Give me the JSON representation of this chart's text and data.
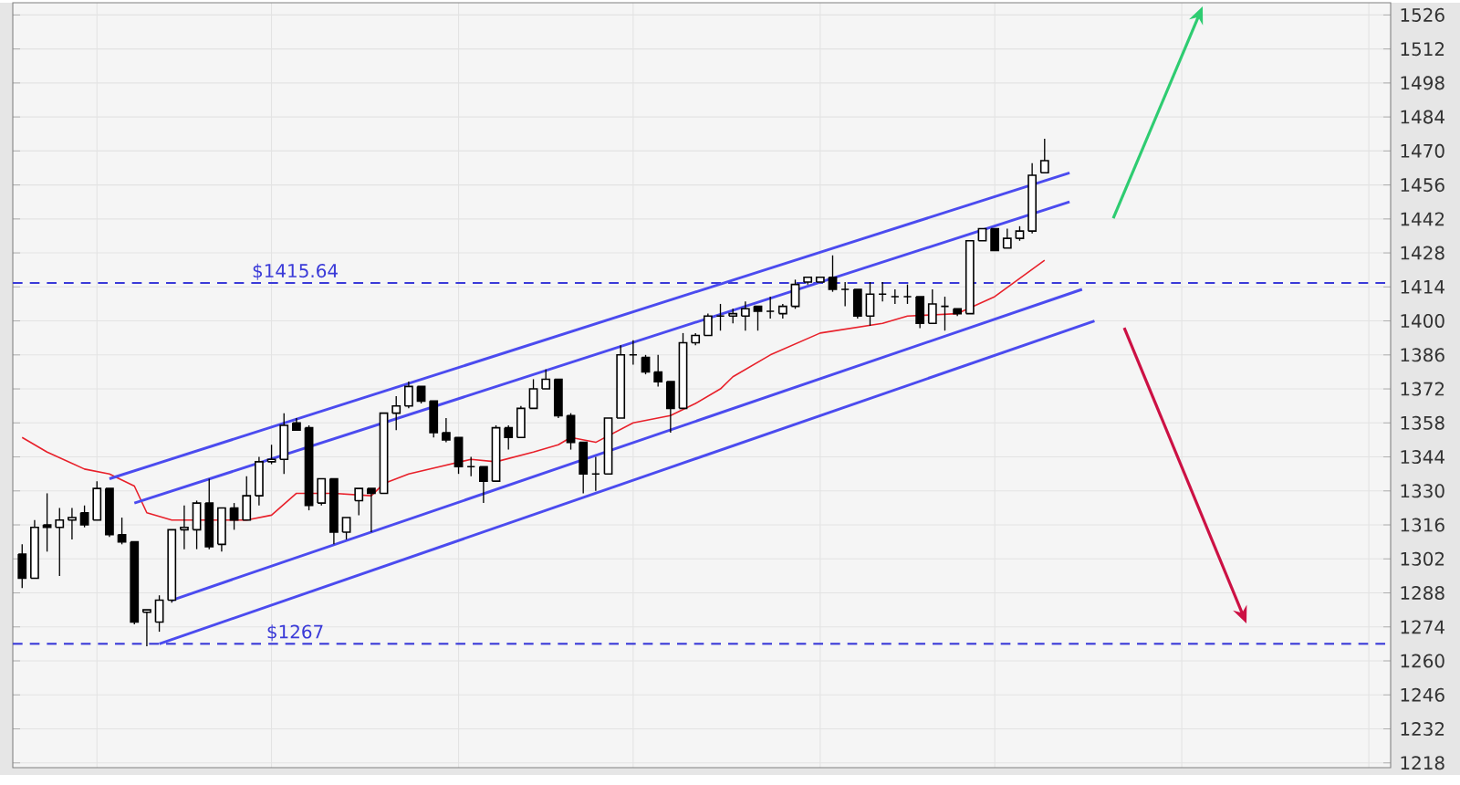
{
  "chart_data": {
    "type": "candlestick",
    "categories": [
      null,
      null,
      null,
      null,
      null,
      null,
      null,
      null,
      null,
      null,
      null,
      null,
      null,
      null,
      null,
      null,
      null,
      null,
      null,
      null,
      null,
      null,
      null,
      null,
      null,
      null,
      null,
      null,
      null,
      null,
      null,
      null,
      null,
      null,
      null,
      null,
      null,
      null,
      null,
      null,
      null,
      null,
      null,
      null,
      null,
      null,
      null,
      null,
      null,
      null,
      null,
      null,
      null,
      null,
      null,
      null,
      null,
      null,
      null,
      null,
      null,
      null,
      null,
      null,
      null,
      null,
      null,
      null,
      null,
      null,
      null,
      null,
      null,
      null,
      null,
      null,
      null,
      null,
      null,
      null,
      null,
      null,
      null,
      null,
      null,
      null,
      null,
      null,
      null,
      null,
      null,
      null,
      null,
      null,
      null,
      null,
      null,
      null,
      null,
      null,
      null,
      null,
      null,
      null,
      null,
      null,
      null,
      null,
      null,
      null
    ],
    "ohlc": [
      [
        1304,
        1308,
        1290,
        1294
      ],
      [
        1294,
        1318,
        1294,
        1315
      ],
      [
        1316,
        1329,
        1305,
        1315
      ],
      [
        1315,
        1323,
        1295,
        1318
      ],
      [
        1318,
        1323,
        1310,
        1319
      ],
      [
        1321,
        1324,
        1315,
        1316
      ],
      [
        1318,
        1334,
        1318,
        1331
      ],
      [
        1331,
        1331,
        1311,
        1312
      ],
      [
        1312,
        1319,
        1308,
        1309
      ],
      [
        1309,
        1309,
        1275,
        1276
      ],
      [
        1280,
        1281,
        1266,
        1281
      ],
      [
        1276,
        1287,
        1272,
        1285
      ],
      [
        1285,
        1314,
        1284,
        1314
      ],
      [
        1314,
        1324,
        1306,
        1315
      ],
      [
        1314,
        1326,
        1306,
        1325
      ],
      [
        1325,
        1335,
        1306,
        1307
      ],
      [
        1308,
        1323,
        1305,
        1323
      ],
      [
        1323,
        1325,
        1314,
        1318
      ],
      [
        1318,
        1336,
        1318,
        1328
      ],
      [
        1328,
        1344,
        1324,
        1342
      ],
      [
        1342,
        1349,
        1341,
        1343
      ],
      [
        1343,
        1362,
        1337,
        1357
      ],
      [
        1358,
        1360,
        1355,
        1355
      ],
      [
        1356,
        1357,
        1322,
        1324
      ],
      [
        1325,
        1335,
        1324,
        1335
      ],
      [
        1335,
        1335,
        1308,
        1313
      ],
      [
        1313,
        1319,
        1310,
        1319
      ],
      [
        1326,
        1331,
        1320,
        1331
      ],
      [
        1331,
        1331,
        1313,
        1329
      ],
      [
        1329,
        1362,
        1329,
        1362
      ],
      [
        1362,
        1369,
        1355,
        1365
      ],
      [
        1365,
        1375,
        1364,
        1373
      ],
      [
        1373,
        1373,
        1366,
        1367
      ],
      [
        1367,
        1367,
        1352,
        1354
      ],
      [
        1354,
        1360,
        1350,
        1351
      ],
      [
        1352,
        1352,
        1337,
        1340
      ],
      [
        1340,
        1344,
        1336,
        1340
      ],
      [
        1340,
        1340,
        1325,
        1334
      ],
      [
        1334,
        1357,
        1334,
        1356
      ],
      [
        1356,
        1357,
        1347,
        1352
      ],
      [
        1352,
        1365,
        1352,
        1364
      ],
      [
        1364,
        1376,
        1364,
        1372
      ],
      [
        1372,
        1380,
        1372,
        1376
      ],
      [
        1376,
        1376,
        1360,
        1361
      ],
      [
        1361,
        1362,
        1347,
        1350
      ],
      [
        1350,
        1350,
        1329,
        1337
      ],
      [
        1337,
        1344,
        1330,
        1337
      ],
      [
        1337,
        1360,
        1337,
        1360
      ],
      [
        1360,
        1390,
        1360,
        1386
      ],
      [
        1386,
        1392,
        1382,
        1386
      ],
      [
        1385,
        1386,
        1378,
        1379
      ],
      [
        1379,
        1386,
        1373,
        1375
      ],
      [
        1375,
        1375,
        1354,
        1364
      ],
      [
        1364,
        1395,
        1364,
        1391
      ],
      [
        1391,
        1395,
        1390,
        1394
      ],
      [
        1394,
        1403,
        1394,
        1402
      ],
      [
        1402,
        1407,
        1396,
        1402
      ],
      [
        1402,
        1405,
        1399,
        1403
      ],
      [
        1402,
        1408,
        1396,
        1405
      ],
      [
        1406,
        1406,
        1396,
        1404
      ],
      [
        1404,
        1410,
        1401,
        1404
      ],
      [
        1403,
        1407,
        1401,
        1406
      ],
      [
        1406,
        1417,
        1405,
        1415
      ],
      [
        1416,
        1418,
        1415,
        1418
      ],
      [
        1416,
        1418,
        1416,
        1418
      ],
      [
        1418,
        1427,
        1412,
        1413
      ],
      [
        1413,
        1416,
        1406,
        1413
      ],
      [
        1413,
        1413,
        1401,
        1402
      ],
      [
        1402,
        1416,
        1398,
        1411
      ],
      [
        1411,
        1416,
        1408,
        1411
      ],
      [
        1410,
        1413,
        1407,
        1410
      ],
      [
        1410,
        1415,
        1407,
        1410
      ],
      [
        1410,
        1410,
        1397,
        1399
      ],
      [
        1399,
        1413,
        1399,
        1407
      ],
      [
        1406,
        1410,
        1396,
        1406
      ],
      [
        1405,
        1405,
        1402,
        1403
      ],
      [
        1403,
        1433,
        1403,
        1433
      ],
      [
        1433,
        1438,
        1433,
        1438
      ],
      [
        1438,
        1438,
        1429,
        1429
      ],
      [
        1430,
        1438,
        1430,
        1434
      ],
      [
        1434,
        1439,
        1433,
        1437
      ],
      [
        1437,
        1465,
        1436,
        1460
      ],
      [
        1461,
        1475,
        1461,
        1466
      ],
      null,
      null,
      null,
      null,
      null,
      null,
      null,
      null,
      null,
      null,
      null,
      null,
      null,
      null,
      null,
      null,
      null,
      null,
      null,
      null,
      null,
      null,
      null,
      null,
      null,
      null,
      null
    ],
    "series": [
      {
        "type": "line",
        "color": "#e8202a",
        "values": [
          1352,
          null,
          1346,
          null,
          null,
          1339,
          null,
          1337,
          null,
          1332,
          1321,
          null,
          1318,
          null,
          null,
          null,
          null,
          null,
          1318,
          null,
          1320,
          null,
          1329,
          null,
          null,
          1329,
          null,
          null,
          1328,
          1333,
          null,
          1337,
          null,
          null,
          null,
          null,
          1343,
          null,
          1342,
          null,
          null,
          1346,
          null,
          1349,
          1352,
          null,
          1350,
          null,
          null,
          1358,
          null,
          null,
          1361,
          null,
          1366,
          null,
          1372,
          1377,
          null,
          null,
          1386,
          null,
          null,
          null,
          1395,
          null,
          null,
          null,
          null,
          1399,
          null,
          1402,
          null,
          null,
          null,
          1403,
          null,
          null,
          1410,
          null,
          null,
          null,
          1425,
          null,
          null,
          null,
          null,
          null,
          null,
          null,
          null,
          null,
          null,
          null,
          null,
          null,
          null,
          null,
          null,
          null,
          null,
          null,
          null,
          null,
          null,
          null,
          null,
          null,
          null,
          null
        ]
      },
      {
        "type": "line",
        "color": "#4b4bef",
        "values": [
          null,
          null,
          null,
          null,
          null,
          null,
          null,
          1335,
          null,
          null,
          null,
          null,
          null,
          null,
          null,
          null,
          null,
          null,
          null,
          null,
          null,
          null,
          null,
          null,
          null,
          null,
          null,
          null,
          null,
          null,
          null,
          null,
          null,
          null,
          null,
          null,
          null,
          null,
          null,
          null,
          null,
          null,
          null,
          null,
          null,
          null,
          null,
          null,
          null,
          null,
          null,
          null,
          null,
          null,
          null,
          null,
          null,
          null,
          null,
          null,
          null,
          null,
          null,
          null,
          null,
          null,
          null,
          null,
          null,
          null,
          null,
          null,
          null,
          null,
          null,
          null,
          null,
          null,
          null,
          null,
          null,
          null,
          null,
          null,
          1461,
          null,
          null,
          null,
          null,
          null,
          null,
          null,
          null,
          null,
          null,
          null,
          null,
          null,
          null,
          null,
          null,
          null,
          null,
          null,
          null,
          null,
          null,
          null,
          null,
          null
        ]
      },
      {
        "type": "line",
        "color": "#4b4bef",
        "values": [
          null,
          null,
          null,
          null,
          null,
          null,
          null,
          null,
          null,
          1325,
          null,
          null,
          null,
          null,
          null,
          null,
          null,
          null,
          null,
          null,
          null,
          null,
          null,
          null,
          null,
          null,
          null,
          null,
          null,
          null,
          null,
          null,
          null,
          null,
          null,
          null,
          null,
          null,
          null,
          null,
          null,
          null,
          null,
          null,
          null,
          null,
          null,
          null,
          null,
          null,
          null,
          null,
          null,
          null,
          null,
          null,
          null,
          null,
          null,
          null,
          null,
          null,
          null,
          null,
          null,
          null,
          null,
          null,
          null,
          null,
          null,
          null,
          null,
          null,
          null,
          null,
          null,
          null,
          null,
          null,
          null,
          null,
          null,
          null,
          1449,
          null,
          null,
          null,
          null,
          null,
          null,
          null,
          null,
          null,
          null,
          null,
          null,
          null,
          null,
          null,
          null,
          null,
          null,
          null,
          null,
          null,
          null,
          null,
          null,
          null
        ]
      },
      {
        "type": "line",
        "color": "#4b4bef",
        "values": [
          null,
          null,
          null,
          null,
          null,
          null,
          null,
          null,
          null,
          null,
          null,
          null,
          1285,
          null,
          null,
          null,
          null,
          null,
          null,
          null,
          null,
          null,
          null,
          null,
          null,
          null,
          null,
          null,
          null,
          null,
          null,
          null,
          null,
          null,
          null,
          null,
          null,
          null,
          null,
          null,
          null,
          null,
          null,
          null,
          null,
          null,
          null,
          null,
          null,
          null,
          null,
          null,
          null,
          null,
          null,
          null,
          null,
          null,
          null,
          null,
          null,
          null,
          null,
          null,
          null,
          null,
          null,
          null,
          null,
          null,
          null,
          null,
          null,
          null,
          null,
          null,
          null,
          null,
          null,
          null,
          null,
          null,
          null,
          null,
          null,
          1413,
          null,
          null,
          null,
          null,
          null,
          null,
          null,
          null,
          null,
          null,
          null,
          null,
          null,
          null,
          null,
          null,
          null,
          null,
          null,
          null,
          null,
          null,
          null,
          null
        ]
      },
      {
        "type": "line",
        "color": "#4b4bef",
        "values": [
          null,
          null,
          null,
          null,
          null,
          null,
          null,
          null,
          null,
          null,
          null,
          1267,
          null,
          null,
          null,
          null,
          null,
          null,
          null,
          null,
          null,
          null,
          null,
          null,
          null,
          null,
          null,
          null,
          null,
          null,
          null,
          null,
          null,
          null,
          null,
          null,
          null,
          null,
          null,
          null,
          null,
          null,
          null,
          null,
          null,
          null,
          null,
          null,
          null,
          null,
          null,
          null,
          null,
          null,
          null,
          null,
          null,
          null,
          null,
          null,
          null,
          null,
          null,
          null,
          null,
          null,
          null,
          null,
          null,
          null,
          null,
          null,
          null,
          null,
          null,
          null,
          null,
          null,
          null,
          null,
          null,
          null,
          null,
          null,
          null,
          null,
          1400,
          null,
          null,
          null,
          null,
          null,
          null,
          null,
          null,
          null,
          null,
          null,
          null,
          null,
          null,
          null,
          null,
          null,
          null,
          null,
          null,
          null,
          null,
          null
        ]
      }
    ],
    "ylim": [
      1216,
      1531
    ],
    "yticks": [
      1218,
      1232,
      1246,
      1260,
      1274,
      1288,
      1302,
      1316,
      1330,
      1344,
      1358,
      1372,
      1386,
      1400,
      1414,
      1428,
      1442,
      1456,
      1470,
      1484,
      1498,
      1512,
      1526
    ],
    "ref_lines": [
      {
        "axis": "y",
        "value": 1415.64,
        "label": "$1415.64",
        "color": "#3a3ad8",
        "line_style": "dashed"
      },
      {
        "axis": "y",
        "value": 1267,
        "label": "$1267",
        "color": "#3a3ad8",
        "line_style": "dashed"
      }
    ],
    "grid": true,
    "tick_labels": "y"
  }
}
